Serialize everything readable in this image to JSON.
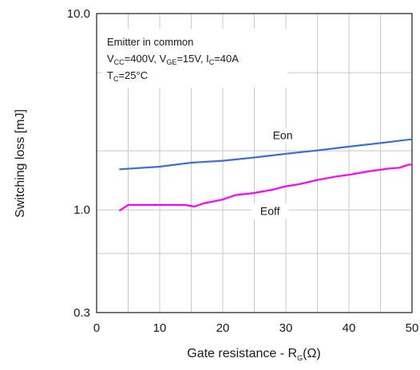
{
  "chart_data": {
    "type": "line",
    "title": "",
    "xlabel": "Gate resistance - R",
    "xlabel_sub": "G",
    "xlabel_unit": "(Ω)",
    "ylabel": "Switching loss [mJ]",
    "xlim": [
      0,
      50
    ],
    "ylim": [
      0.3,
      10.0
    ],
    "yscale": "log",
    "grid": true,
    "x_ticks": [
      "0",
      "10",
      "20",
      "30",
      "40",
      "50"
    ],
    "y_ticks": [
      "0.3",
      "1.0",
      "10.0"
    ],
    "annotation": {
      "line1": "Emitter in common",
      "line2": [
        {
          "t": "V"
        },
        {
          "t": "CC",
          "sub": true
        },
        {
          "t": "=400V, V"
        },
        {
          "t": "GE",
          "sub": true
        },
        {
          "t": "=15V, I"
        },
        {
          "t": "C",
          "sub": true
        },
        {
          "t": "=40A"
        }
      ],
      "line3": [
        {
          "t": "T"
        },
        {
          "t": "C",
          "sub": true
        },
        {
          "t": "=25°C"
        }
      ]
    },
    "series": [
      {
        "name": "Eon",
        "color": "#3a6fe0",
        "x": [
          3.6,
          10,
          15,
          20,
          25,
          30,
          35,
          40,
          45,
          50
        ],
        "y": [
          1.61,
          1.66,
          1.74,
          1.78,
          1.85,
          1.93,
          2.01,
          2.1,
          2.19,
          2.29
        ]
      },
      {
        "name": "Eoff",
        "color": "#ff00ff",
        "x": [
          3.6,
          5,
          10,
          14,
          15.5,
          17,
          20,
          22,
          25,
          28,
          30,
          32,
          35,
          38,
          40,
          43,
          46,
          48,
          49.5,
          50
        ],
        "y": [
          0.99,
          1.06,
          1.06,
          1.06,
          1.04,
          1.08,
          1.13,
          1.19,
          1.22,
          1.27,
          1.32,
          1.35,
          1.42,
          1.48,
          1.51,
          1.57,
          1.62,
          1.64,
          1.7,
          1.7
        ]
      }
    ]
  }
}
